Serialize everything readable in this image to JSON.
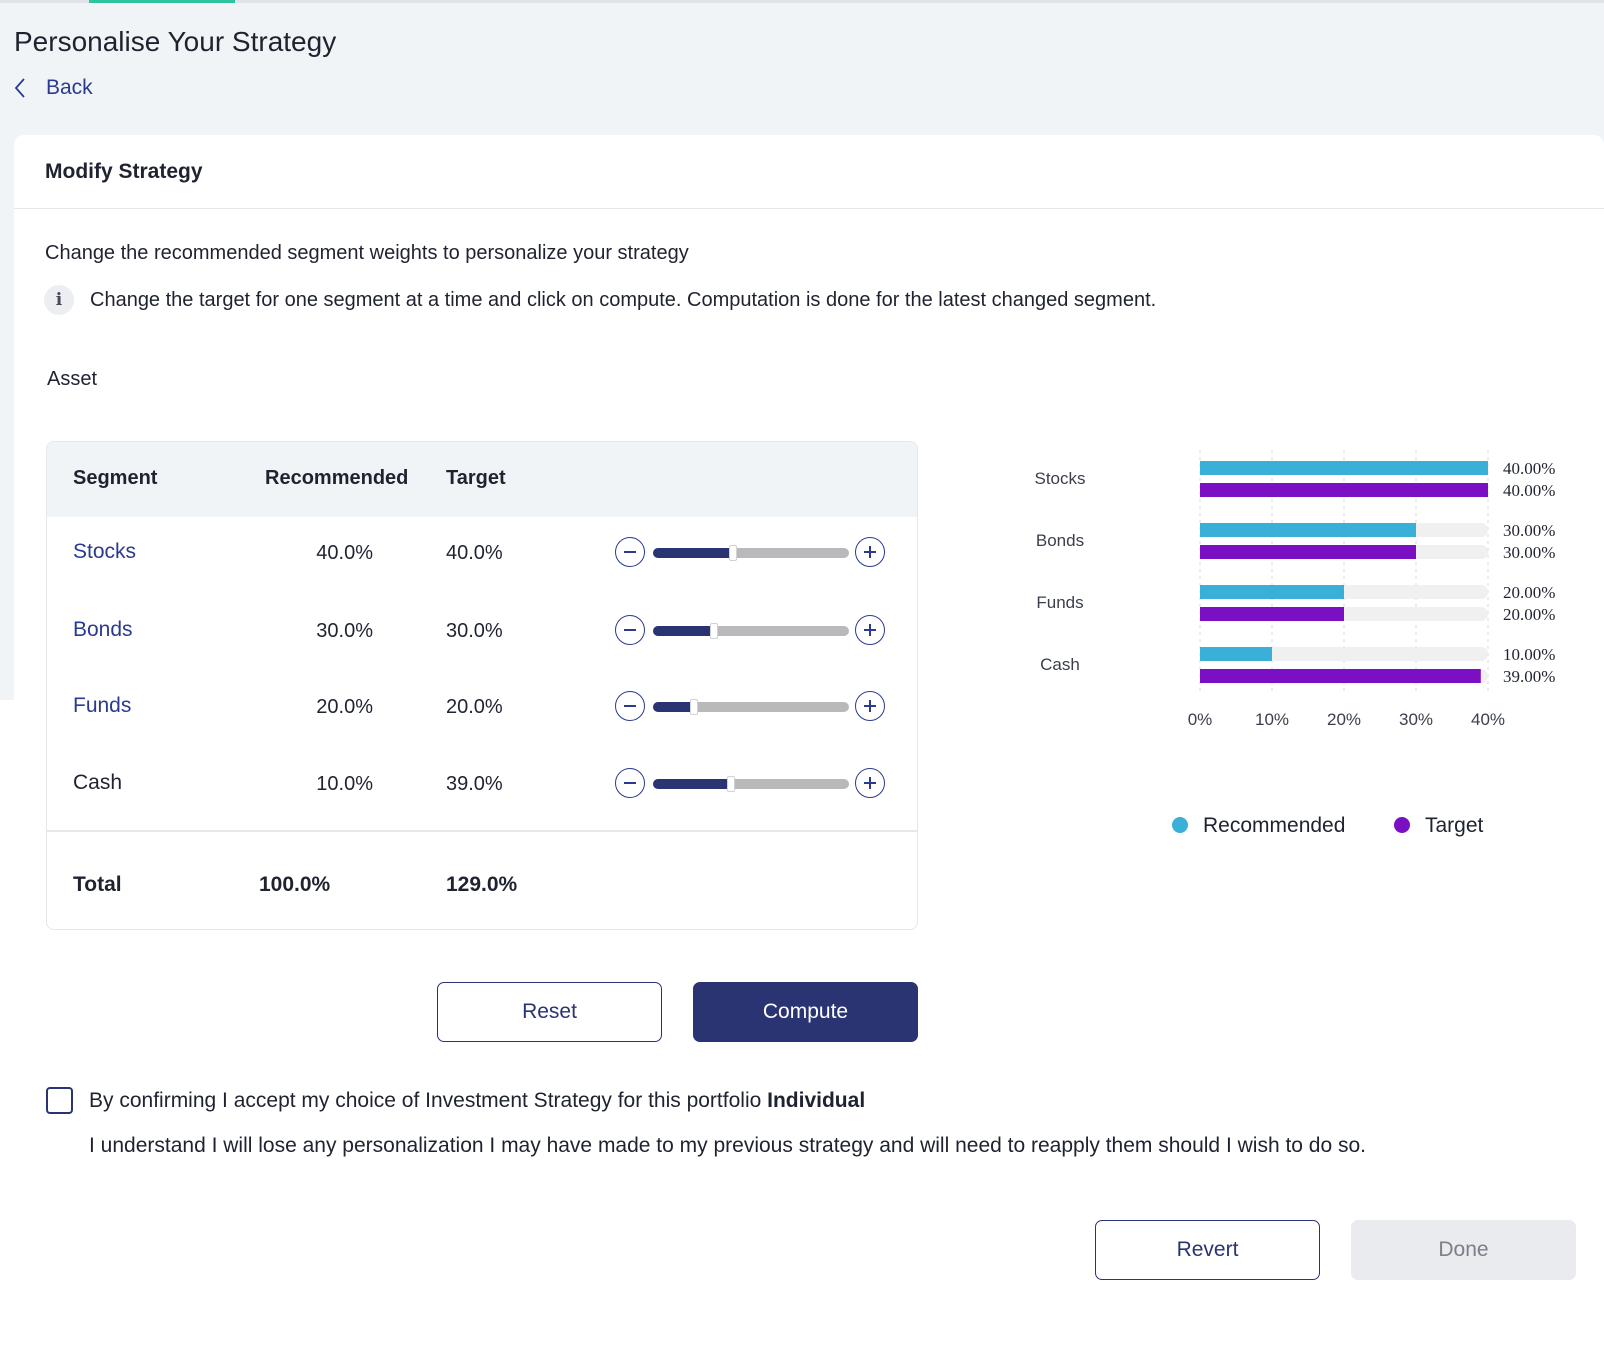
{
  "page": {
    "title": "Personalise Your Strategy",
    "back_label": "Back"
  },
  "card": {
    "title": "Modify Strategy",
    "intro": "Change the recommended segment weights to personalize your strategy",
    "info_icon": "i",
    "info_text": "Change the target for one segment at a time and click on compute. Computation is done for the latest changed segment.",
    "asset_label": "Asset"
  },
  "table": {
    "headers": {
      "segment": "Segment",
      "recommended": "Recommended",
      "target": "Target"
    },
    "rows": [
      {
        "segment": "Stocks",
        "recommended": "40.0%",
        "target": "40.0%",
        "slider_fraction": 0.4
      },
      {
        "segment": "Bonds",
        "recommended": "30.0%",
        "target": "30.0%",
        "slider_fraction": 0.3
      },
      {
        "segment": "Funds",
        "recommended": "20.0%",
        "target": "20.0%",
        "slider_fraction": 0.2
      },
      {
        "segment": "Cash",
        "recommended": "10.0%",
        "target": "39.0%",
        "slider_fraction": 0.39
      }
    ],
    "total": {
      "label": "Total",
      "recommended": "100.0%",
      "target": "129.0%"
    }
  },
  "actions": {
    "reset_label": "Reset",
    "compute_label": "Compute",
    "revert_label": "Revert",
    "done_label": "Done"
  },
  "confirm": {
    "text": "By confirming I accept my choice of Investment Strategy for this portfolio",
    "portfolio": "Individual",
    "understand": "I understand I will lose any personalization I may have made to my previous strategy and will need to reapply them should I wish to do so."
  },
  "colors": {
    "accent": "#2b3473",
    "link": "#2a3b8f",
    "recommended": "#3ab0d8",
    "target": "#7b0fc4",
    "tab_indicator": "#2ec4a0"
  },
  "chart_data": {
    "type": "bar",
    "orientation": "horizontal",
    "categories": [
      "Stocks",
      "Bonds",
      "Funds",
      "Cash"
    ],
    "series": [
      {
        "name": "Recommended",
        "values": [
          40,
          30,
          20,
          10
        ],
        "labels": [
          "40.00%",
          "30.00%",
          "20.00%",
          "10.00%"
        ]
      },
      {
        "name": "Target",
        "values": [
          40,
          30,
          20,
          39
        ],
        "labels": [
          "40.00%",
          "30.00%",
          "20.00%",
          "39.00%"
        ]
      }
    ],
    "xlim": [
      0,
      40
    ],
    "xticks": [
      "0%",
      "10%",
      "20%",
      "30%",
      "40%"
    ],
    "grid": "vertical dashed",
    "legend": "bottom"
  }
}
